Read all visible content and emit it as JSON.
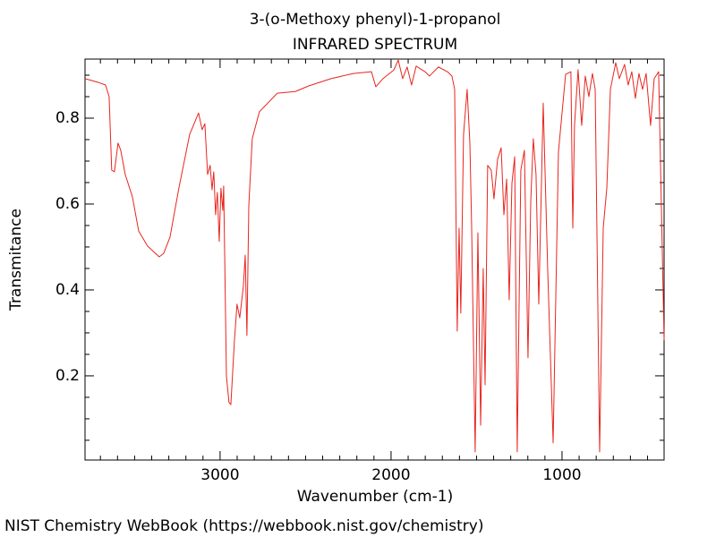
{
  "chart_data": {
    "type": "line",
    "title": "3-(o-Methoxy phenyl)-1-propanol",
    "subtitle": "INFRARED SPECTRUM",
    "x_label": "Wavenumber (cm-1)",
    "y_label": "Transmitance",
    "footer": "NIST Chemistry WebBook (https://webbook.nist.gov/chemistry)",
    "xlim": [
      3790,
      403
    ],
    "ylim": [
      0.004,
      0.9375
    ],
    "xticks": [
      3000,
      2000,
      1000
    ],
    "yticks": [
      0.2,
      0.4,
      0.6,
      0.8
    ],
    "xminorticks": [
      3700,
      3600,
      3500,
      3400,
      3300,
      3200,
      3100,
      2900,
      2800,
      2700,
      2600,
      2500,
      2400,
      2300,
      2200,
      2100,
      1900,
      1800,
      1700,
      1600,
      1500,
      1400,
      1300,
      1200,
      1100,
      900,
      800,
      700,
      600,
      500
    ],
    "yminorticks": [
      0.05,
      0.1,
      0.15,
      0.25,
      0.3,
      0.35,
      0.45,
      0.5,
      0.55,
      0.65,
      0.7,
      0.75,
      0.85,
      0.9
    ],
    "series": [
      {
        "color": "#e8251f",
        "x": [
          3790,
          3711,
          3670,
          3649,
          3634,
          3618,
          3597,
          3581,
          3555,
          3513,
          3476,
          3424,
          3356,
          3330,
          3293,
          3241,
          3178,
          3126,
          3105,
          3089,
          3073,
          3058,
          3047,
          3037,
          3026,
          3016,
          3005,
          2995,
          2984,
          2979,
          2963,
          2948,
          2937,
          2916,
          2901,
          2885,
          2864,
          2853,
          2843,
          2832,
          2812,
          2770,
          2665,
          2560,
          2482,
          2351,
          2220,
          2115,
          2089,
          2047,
          1984,
          1958,
          1932,
          1906,
          1880,
          1853,
          1801,
          1775,
          1723,
          1670,
          1644,
          1628,
          1613,
          1602,
          1592,
          1576,
          1555,
          1539,
          1529,
          1508,
          1492,
          1476,
          1461,
          1450,
          1435,
          1414,
          1398,
          1377,
          1356,
          1340,
          1324,
          1309,
          1293,
          1277,
          1262,
          1241,
          1220,
          1199,
          1183,
          1168,
          1152,
          1136,
          1110,
          1084,
          1052,
          1021,
          979,
          948,
          937,
          927,
          906,
          885,
          864,
          843,
          822,
          806,
          780,
          759,
          738,
          717,
          686,
          665,
          634,
          613,
          592,
          571,
          550,
          529,
          508,
          482,
          461,
          435,
          403
        ],
        "values": [
          0.892,
          0.883,
          0.877,
          0.85,
          0.679,
          0.675,
          0.742,
          0.725,
          0.669,
          0.617,
          0.537,
          0.502,
          0.477,
          0.485,
          0.523,
          0.637,
          0.762,
          0.812,
          0.773,
          0.787,
          0.669,
          0.69,
          0.633,
          0.675,
          0.575,
          0.627,
          0.513,
          0.637,
          0.585,
          0.642,
          0.2,
          0.138,
          0.133,
          0.283,
          0.367,
          0.335,
          0.408,
          0.481,
          0.294,
          0.596,
          0.752,
          0.815,
          0.858,
          0.862,
          0.875,
          0.892,
          0.904,
          0.908,
          0.873,
          0.892,
          0.912,
          0.935,
          0.892,
          0.919,
          0.877,
          0.921,
          0.908,
          0.898,
          0.919,
          0.908,
          0.898,
          0.867,
          0.304,
          0.544,
          0.346,
          0.762,
          0.867,
          0.742,
          0.554,
          0.023,
          0.533,
          0.085,
          0.45,
          0.179,
          0.69,
          0.679,
          0.612,
          0.704,
          0.731,
          0.575,
          0.658,
          0.377,
          0.648,
          0.71,
          0.023,
          0.679,
          0.725,
          0.242,
          0.606,
          0.752,
          0.669,
          0.367,
          0.835,
          0.45,
          0.044,
          0.721,
          0.902,
          0.908,
          0.544,
          0.783,
          0.913,
          0.783,
          0.898,
          0.85,
          0.904,
          0.867,
          0.023,
          0.544,
          0.637,
          0.867,
          0.929,
          0.892,
          0.925,
          0.877,
          0.908,
          0.846,
          0.904,
          0.867,
          0.904,
          0.783,
          0.892,
          0.908,
          0.283
        ]
      }
    ]
  }
}
